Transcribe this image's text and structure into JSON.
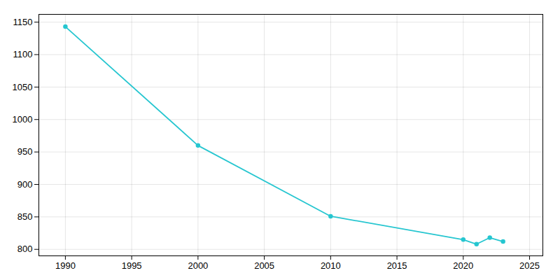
{
  "chart_data": {
    "type": "line",
    "x": [
      1990,
      2000,
      2010,
      2020,
      2021,
      2022,
      2023
    ],
    "values": [
      1143,
      960,
      851,
      815,
      808,
      818,
      812
    ],
    "color": "#26c6d0",
    "marker": "circle",
    "xlim": [
      1988,
      2026
    ],
    "ylim": [
      790,
      1162
    ],
    "xticks": [
      1990,
      1995,
      2000,
      2005,
      2010,
      2015,
      2020,
      2025
    ],
    "yticks": [
      800,
      850,
      900,
      950,
      1000,
      1050,
      1100,
      1150
    ],
    "grid": true
  }
}
